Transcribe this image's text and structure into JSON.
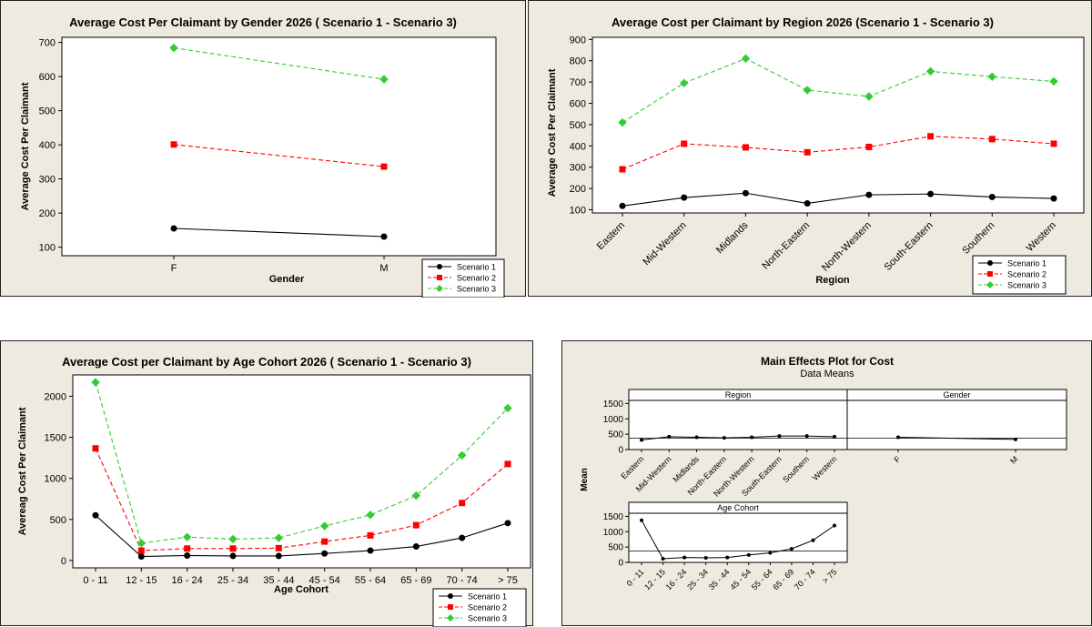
{
  "chart_data": [
    {
      "type": "line",
      "title": "Average Cost Per Claimant by Gender 2026 ( Scenario 1 - Scenario 3)",
      "xlabel": "Gender",
      "ylabel": "Average Cost Per Claimant",
      "categories": [
        "F",
        "M"
      ],
      "ylim": [
        75,
        715
      ],
      "yticks": [
        100,
        200,
        300,
        400,
        500,
        600,
        700
      ],
      "legend": "bottom-right",
      "series": [
        {
          "name": "Scenario 1",
          "values": [
            155,
            131
          ]
        },
        {
          "name": "Scenario 2",
          "values": [
            401,
            336
          ]
        },
        {
          "name": "Scenario 3",
          "values": [
            684,
            592
          ]
        }
      ]
    },
    {
      "type": "line",
      "title": "Average Cost per Claimant by Region 2026 (Scenario 1 - Scenario 3)",
      "xlabel": "Region",
      "ylabel": "Average Cost Per Claimant",
      "categories": [
        "Eastern",
        "Mid-Western",
        "Midlands",
        "North-Eastern",
        "North-Western",
        "South-Eastern",
        "Southern",
        "Western"
      ],
      "ylim": [
        85,
        910
      ],
      "yticks": [
        100,
        200,
        300,
        400,
        500,
        600,
        700,
        800,
        900
      ],
      "legend": "bottom-right",
      "series": [
        {
          "name": "Scenario 1",
          "values": [
            118,
            157,
            178,
            130,
            170,
            174,
            160,
            153
          ]
        },
        {
          "name": "Scenario 2",
          "values": [
            290,
            410,
            393,
            370,
            395,
            445,
            432,
            410
          ]
        },
        {
          "name": "Scenario 3",
          "values": [
            510,
            695,
            810,
            662,
            632,
            750,
            725,
            703
          ]
        }
      ]
    },
    {
      "type": "line",
      "title": "Average Cost per Claimant by Age Cohort 2026 ( Scenario 1 - Scenario 3)",
      "xlabel": "Age Cohort",
      "ylabel": "Avereag Cost Per Claimant",
      "categories": [
        "0 - 11",
        "12 - 15",
        "16 - 24",
        "25 - 34",
        "35 - 44",
        "45 - 54",
        "55 - 64",
        "65 - 69",
        "70 - 74",
        "> 75"
      ],
      "ylim": [
        -90,
        2260
      ],
      "yticks": [
        0,
        500,
        1000,
        1500,
        2000
      ],
      "legend": "bottom-right",
      "series": [
        {
          "name": "Scenario 1",
          "values": [
            550,
            48,
            60,
            55,
            55,
            85,
            120,
            170,
            275,
            455
          ]
        },
        {
          "name": "Scenario 2",
          "values": [
            1365,
            120,
            145,
            145,
            150,
            230,
            305,
            430,
            700,
            1175
          ]
        },
        {
          "name": "Scenario 3",
          "values": [
            2170,
            210,
            285,
            260,
            275,
            420,
            555,
            790,
            1280,
            1855
          ]
        }
      ]
    },
    {
      "type": "line",
      "title": "Main Effects Plot for Cost",
      "subtitle": "Data Means",
      "ylabel": "Mean",
      "ylim": [
        0,
        1600
      ],
      "yticks": [
        0,
        500,
        1000,
        1500
      ],
      "mean_line": 370,
      "panels": [
        {
          "name": "Region",
          "categories": [
            "Eastern",
            "Mid-Western",
            "Midlands",
            "North-Eastern",
            "North-Western",
            "South-Eastern",
            "Southern",
            "Western"
          ],
          "values": [
            310,
            420,
            400,
            380,
            400,
            440,
            440,
            420
          ]
        },
        {
          "name": "Gender",
          "categories": [
            "F",
            "M"
          ],
          "values": [
            400,
            330
          ]
        },
        {
          "name": "Age Cohort",
          "categories": [
            "0 - 11",
            "12 - 15",
            "16 - 24",
            "25 - 34",
            "35 - 44",
            "45 - 54",
            "55 - 64",
            "65 - 69",
            "70 - 74",
            "> 75"
          ],
          "values": [
            1370,
            120,
            160,
            150,
            160,
            240,
            310,
            440,
            720,
            1200
          ]
        }
      ]
    }
  ]
}
